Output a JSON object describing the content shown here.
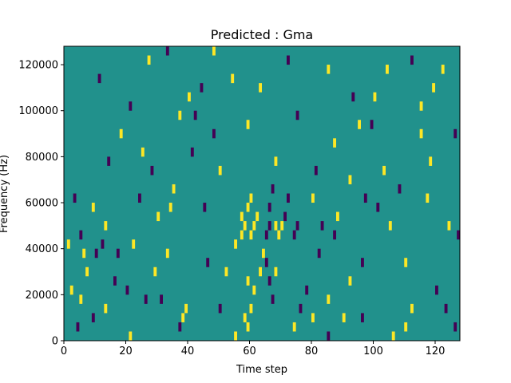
{
  "chart_data": {
    "type": "heatmap",
    "title": "Predicted : Gma",
    "xlabel": "Time step",
    "ylabel": "Frequency (Hz)",
    "xlim": [
      0,
      128
    ],
    "ylim": [
      0,
      128000
    ],
    "x_ticks": [
      {
        "value": 0,
        "label": "0"
      },
      {
        "value": 20,
        "label": "20"
      },
      {
        "value": 40,
        "label": "40"
      },
      {
        "value": 60,
        "label": "60"
      },
      {
        "value": 80,
        "label": "80"
      },
      {
        "value": 100,
        "label": "100"
      },
      {
        "value": 120,
        "label": "120"
      }
    ],
    "y_ticks": [
      {
        "value": 0,
        "label": "0"
      },
      {
        "value": 20000,
        "label": "20000"
      },
      {
        "value": 40000,
        "label": "40000"
      },
      {
        "value": 60000,
        "label": "60000"
      },
      {
        "value": 80000,
        "label": "80000"
      },
      {
        "value": 100000,
        "label": "100000"
      },
      {
        "value": 120000,
        "label": "120000"
      }
    ],
    "colormap": "viridis",
    "levels": [
      -1,
      0,
      1
    ],
    "level_colors": {
      "-1": "#440154",
      "0": "#21918c",
      "1": "#fde725"
    },
    "background_level": 0,
    "cell_width_steps": 1,
    "cell_height_hz": 4000,
    "cells": [
      {
        "t": 5,
        "f": 44000,
        "v": -1
      },
      {
        "t": 6,
        "f": 36000,
        "v": 1
      },
      {
        "t": 5,
        "f": 16000,
        "v": 1
      },
      {
        "t": 7,
        "f": 28000,
        "v": 1
      },
      {
        "t": 9,
        "f": 8000,
        "v": -1
      },
      {
        "t": 10,
        "f": 36000,
        "v": -1
      },
      {
        "t": 12,
        "f": 40000,
        "v": -1
      },
      {
        "t": 13,
        "f": 48000,
        "v": 1
      },
      {
        "t": 11,
        "f": 112000,
        "v": -1
      },
      {
        "t": 16,
        "f": 24000,
        "v": -1
      },
      {
        "t": 18,
        "f": 88000,
        "v": 1
      },
      {
        "t": 20,
        "f": 20000,
        "v": -1
      },
      {
        "t": 14,
        "f": 76000,
        "v": -1
      },
      {
        "t": 22,
        "f": 40000,
        "v": 1
      },
      {
        "t": 26,
        "f": 16000,
        "v": -1
      },
      {
        "t": 28,
        "f": 72000,
        "v": -1
      },
      {
        "t": 30,
        "f": 52000,
        "v": 1
      },
      {
        "t": 33,
        "f": 36000,
        "v": 1
      },
      {
        "t": 35,
        "f": 64000,
        "v": 1
      },
      {
        "t": 38,
        "f": 8000,
        "v": 1
      },
      {
        "t": 39,
        "f": 12000,
        "v": 1
      },
      {
        "t": 40,
        "f": 104000,
        "v": 1
      },
      {
        "t": 42,
        "f": 96000,
        "v": -1
      },
      {
        "t": 45,
        "f": 56000,
        "v": -1
      },
      {
        "t": 48,
        "f": 124000,
        "v": 1
      },
      {
        "t": 50,
        "f": 72000,
        "v": 1
      },
      {
        "t": 52,
        "f": 28000,
        "v": 1
      },
      {
        "t": 55,
        "f": 40000,
        "v": 1
      },
      {
        "t": 57,
        "f": 52000,
        "v": 1
      },
      {
        "t": 57,
        "f": 44000,
        "v": 1
      },
      {
        "t": 58,
        "f": 48000,
        "v": 1
      },
      {
        "t": 59,
        "f": 56000,
        "v": 1
      },
      {
        "t": 59,
        "f": 24000,
        "v": 1
      },
      {
        "t": 60,
        "f": 60000,
        "v": 1
      },
      {
        "t": 60,
        "f": 44000,
        "v": 1
      },
      {
        "t": 61,
        "f": 48000,
        "v": 1
      },
      {
        "t": 61,
        "f": 20000,
        "v": 1
      },
      {
        "t": 62,
        "f": 52000,
        "v": 1
      },
      {
        "t": 58,
        "f": 8000,
        "v": 1
      },
      {
        "t": 59,
        "f": 4000,
        "v": 1
      },
      {
        "t": 60,
        "f": 12000,
        "v": 1
      },
      {
        "t": 63,
        "f": 28000,
        "v": 1
      },
      {
        "t": 64,
        "f": 36000,
        "v": 1
      },
      {
        "t": 65,
        "f": 44000,
        "v": -1
      },
      {
        "t": 66,
        "f": 48000,
        "v": -1
      },
      {
        "t": 66,
        "f": 56000,
        "v": -1
      },
      {
        "t": 65,
        "f": 32000,
        "v": -1
      },
      {
        "t": 66,
        "f": 24000,
        "v": -1
      },
      {
        "t": 67,
        "f": 16000,
        "v": -1
      },
      {
        "t": 68,
        "f": 48000,
        "v": 1
      },
      {
        "t": 69,
        "f": 44000,
        "v": 1
      },
      {
        "t": 70,
        "f": 48000,
        "v": 1
      },
      {
        "t": 71,
        "f": 52000,
        "v": -1
      },
      {
        "t": 72,
        "f": 60000,
        "v": -1
      },
      {
        "t": 74,
        "f": 44000,
        "v": -1
      },
      {
        "t": 75,
        "f": 48000,
        "v": -1
      },
      {
        "t": 76,
        "f": 12000,
        "v": -1
      },
      {
        "t": 78,
        "f": 20000,
        "v": -1
      },
      {
        "t": 80,
        "f": 8000,
        "v": 1
      },
      {
        "t": 82,
        "f": 36000,
        "v": -1
      },
      {
        "t": 83,
        "f": 48000,
        "v": -1
      },
      {
        "t": 85,
        "f": 16000,
        "v": 1
      },
      {
        "t": 87,
        "f": 44000,
        "v": -1
      },
      {
        "t": 88,
        "f": 52000,
        "v": 1
      },
      {
        "t": 90,
        "f": 8000,
        "v": 1
      },
      {
        "t": 92,
        "f": 24000,
        "v": 1
      },
      {
        "t": 95,
        "f": 92000,
        "v": 1
      },
      {
        "t": 97,
        "f": 60000,
        "v": -1
      },
      {
        "t": 100,
        "f": 104000,
        "v": 1
      },
      {
        "t": 103,
        "f": 72000,
        "v": 1
      },
      {
        "t": 105,
        "f": 48000,
        "v": 1
      },
      {
        "t": 108,
        "f": 64000,
        "v": -1
      },
      {
        "t": 110,
        "f": 32000,
        "v": 1
      },
      {
        "t": 112,
        "f": 12000,
        "v": 1
      },
      {
        "t": 115,
        "f": 100000,
        "v": 1
      },
      {
        "t": 118,
        "f": 76000,
        "v": 1
      },
      {
        "t": 120,
        "f": 20000,
        "v": -1
      },
      {
        "t": 122,
        "f": 116000,
        "v": 1
      },
      {
        "t": 124,
        "f": 48000,
        "v": 1
      },
      {
        "t": 126,
        "f": 88000,
        "v": -1
      },
      {
        "t": 127,
        "f": 44000,
        "v": -1
      },
      {
        "t": 27,
        "f": 120000,
        "v": 1
      },
      {
        "t": 33,
        "f": 124000,
        "v": -1
      },
      {
        "t": 44,
        "f": 108000,
        "v": -1
      },
      {
        "t": 54,
        "f": 112000,
        "v": 1
      },
      {
        "t": 63,
        "f": 108000,
        "v": 1
      },
      {
        "t": 72,
        "f": 120000,
        "v": -1
      },
      {
        "t": 85,
        "f": 116000,
        "v": 1
      },
      {
        "t": 93,
        "f": 104000,
        "v": -1
      },
      {
        "t": 104,
        "f": 116000,
        "v": 1
      },
      {
        "t": 112,
        "f": 120000,
        "v": -1
      },
      {
        "t": 119,
        "f": 108000,
        "v": 1
      },
      {
        "t": 21,
        "f": 100000,
        "v": -1
      },
      {
        "t": 37,
        "f": 96000,
        "v": 1
      },
      {
        "t": 48,
        "f": 88000,
        "v": -1
      },
      {
        "t": 59,
        "f": 92000,
        "v": 1
      },
      {
        "t": 75,
        "f": 96000,
        "v": -1
      },
      {
        "t": 87,
        "f": 84000,
        "v": 1
      },
      {
        "t": 99,
        "f": 92000,
        "v": -1
      },
      {
        "t": 115,
        "f": 88000,
        "v": 1
      },
      {
        "t": 25,
        "f": 80000,
        "v": 1
      },
      {
        "t": 41,
        "f": 80000,
        "v": -1
      },
      {
        "t": 68,
        "f": 76000,
        "v": 1
      },
      {
        "t": 81,
        "f": 72000,
        "v": -1
      },
      {
        "t": 92,
        "f": 68000,
        "v": 1
      },
      {
        "t": 3,
        "f": 60000,
        "v": -1
      },
      {
        "t": 9,
        "f": 56000,
        "v": 1
      },
      {
        "t": 24,
        "f": 60000,
        "v": -1
      },
      {
        "t": 34,
        "f": 56000,
        "v": 1
      },
      {
        "t": 67,
        "f": 64000,
        "v": -1
      },
      {
        "t": 80,
        "f": 60000,
        "v": 1
      },
      {
        "t": 101,
        "f": 56000,
        "v": -1
      },
      {
        "t": 117,
        "f": 60000,
        "v": 1
      },
      {
        "t": 1,
        "f": 40000,
        "v": 1
      },
      {
        "t": 17,
        "f": 36000,
        "v": -1
      },
      {
        "t": 29,
        "f": 28000,
        "v": 1
      },
      {
        "t": 46,
        "f": 32000,
        "v": -1
      },
      {
        "t": 68,
        "f": 28000,
        "v": 1
      },
      {
        "t": 96,
        "f": 32000,
        "v": -1
      },
      {
        "t": 2,
        "f": 20000,
        "v": 1
      },
      {
        "t": 13,
        "f": 12000,
        "v": 1
      },
      {
        "t": 31,
        "f": 16000,
        "v": -1
      },
      {
        "t": 50,
        "f": 12000,
        "v": -1
      },
      {
        "t": 74,
        "f": 4000,
        "v": 1
      },
      {
        "t": 96,
        "f": 8000,
        "v": -1
      },
      {
        "t": 110,
        "f": 4000,
        "v": 1
      },
      {
        "t": 123,
        "f": 12000,
        "v": -1
      },
      {
        "t": 4,
        "f": 4000,
        "v": -1
      },
      {
        "t": 21,
        "f": 0,
        "v": 1
      },
      {
        "t": 37,
        "f": 4000,
        "v": -1
      },
      {
        "t": 55,
        "f": 0,
        "v": 1
      },
      {
        "t": 85,
        "f": 0,
        "v": -1
      },
      {
        "t": 106,
        "f": 0,
        "v": 1
      },
      {
        "t": 126,
        "f": 4000,
        "v": -1
      }
    ]
  }
}
